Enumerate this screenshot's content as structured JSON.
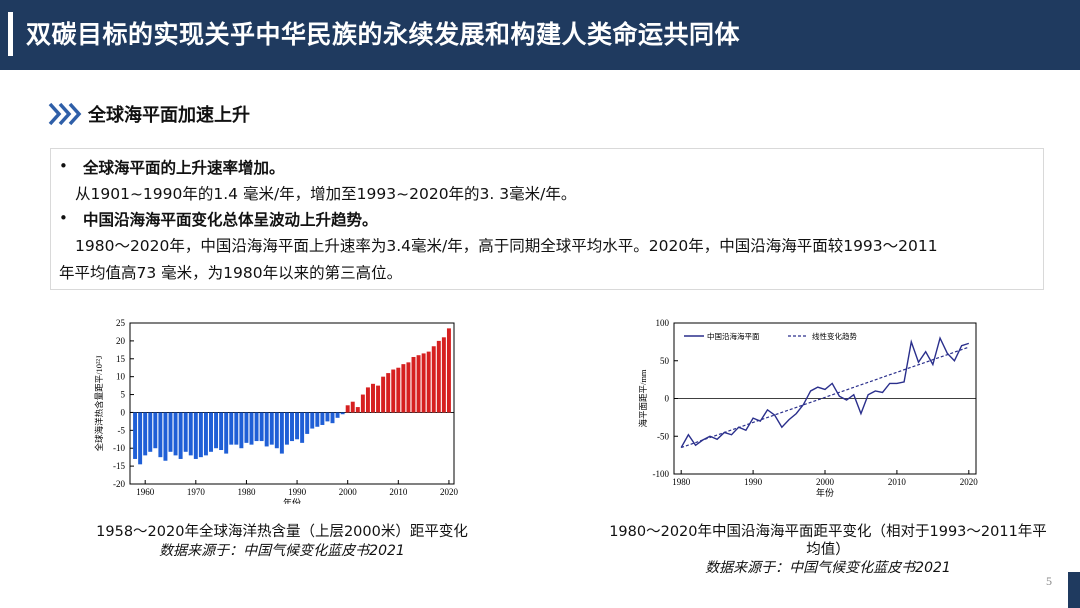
{
  "header": {
    "title": "双碳目标的实现关乎中华民族的永续发展和构建人类命运共同体"
  },
  "section": {
    "title": "全球海平面加速上升"
  },
  "points": [
    {
      "bullet": "•",
      "heading": "全球海平面的上升速率增加。",
      "body_lines": [
        "从1901~1990年的1.4 毫米/年，增加至1993~2020年的3. 3毫米/年。"
      ]
    },
    {
      "bullet": "•",
      "heading": "中国沿海海平面变化总体呈波动上升趋势。",
      "body_lines": [
        "1980～2020年，中国沿海海平面上升速率为3.4毫米/年，高于同期全球平均水平。2020年，中国沿海海平面较1993～2011",
        "年平均值高73 毫米，为1980年以来的第三高位。"
      ]
    }
  ],
  "left_figure": {
    "caption": "1958～2020年全球海洋热含量（上层2000米）距平变化",
    "source": "数据来源于：中国气候变化蓝皮书2021"
  },
  "right_figure": {
    "caption_lines": [
      "1980～2020年中国沿海海平面距平变化（相对于1993～2011年平",
      "均值）"
    ],
    "source": "数据来源于：中国气候变化蓝皮书2021"
  },
  "page_number": "5",
  "colors": {
    "header_bg": "#1f3a5f",
    "bar_negative": "#1f5fd6",
    "bar_positive": "#d62020",
    "line": "#2a2f8c"
  },
  "chart_data": [
    {
      "type": "bar",
      "xlabel": "年份",
      "ylabel": "全球海洋热含量距平/10²²J",
      "xlim": [
        1957,
        2021
      ],
      "ylim": [
        -20,
        25
      ],
      "xticks": [
        1960,
        1970,
        1980,
        1990,
        2000,
        2010,
        2020
      ],
      "yticks": [
        -20,
        -15,
        -10,
        -5,
        0,
        5,
        10,
        15,
        20,
        25
      ],
      "x": [
        1958,
        1959,
        1960,
        1961,
        1962,
        1963,
        1964,
        1965,
        1966,
        1967,
        1968,
        1969,
        1970,
        1971,
        1972,
        1973,
        1974,
        1975,
        1976,
        1977,
        1978,
        1979,
        1980,
        1981,
        1982,
        1983,
        1984,
        1985,
        1986,
        1987,
        1988,
        1989,
        1990,
        1991,
        1992,
        1993,
        1994,
        1995,
        1996,
        1997,
        1998,
        1999,
        2000,
        2001,
        2002,
        2003,
        2004,
        2005,
        2006,
        2007,
        2008,
        2009,
        2010,
        2011,
        2012,
        2013,
        2014,
        2015,
        2016,
        2017,
        2018,
        2019,
        2020
      ],
      "values": [
        -13,
        -14.5,
        -12,
        -11,
        -10,
        -12.5,
        -13.5,
        -11,
        -12,
        -13,
        -11,
        -12,
        -13,
        -12.5,
        -12,
        -11,
        -10,
        -10.5,
        -11.5,
        -9,
        -9,
        -10,
        -8.5,
        -9,
        -8,
        -8,
        -9.5,
        -9,
        -10,
        -11.5,
        -9,
        -8,
        -7.5,
        -8.5,
        -6,
        -4.5,
        -4,
        -3.5,
        -2.5,
        -3,
        -1.5,
        -0.5,
        2,
        3,
        1.5,
        5,
        7,
        8,
        7.5,
        10,
        11,
        12,
        12.5,
        13.5,
        14,
        15.5,
        16,
        16.5,
        17,
        18.5,
        20,
        21,
        23.5
      ]
    },
    {
      "type": "line",
      "xlabel": "年份",
      "ylabel": "海平面距平/mm",
      "xlim": [
        1979,
        2021
      ],
      "ylim": [
        -100,
        100
      ],
      "xticks": [
        1980,
        1990,
        2000,
        2010,
        2020
      ],
      "yticks": [
        -100,
        -50,
        0,
        50,
        100
      ],
      "series": [
        {
          "name": "中国沿海海平面",
          "style": "solid",
          "x": [
            1980,
            1981,
            1982,
            1983,
            1984,
            1985,
            1986,
            1987,
            1988,
            1989,
            1990,
            1991,
            1992,
            1993,
            1994,
            1995,
            1996,
            1997,
            1998,
            1999,
            2000,
            2001,
            2002,
            2003,
            2004,
            2005,
            2006,
            2007,
            2008,
            2009,
            2010,
            2011,
            2012,
            2013,
            2014,
            2015,
            2016,
            2017,
            2018,
            2019,
            2020
          ],
          "y": [
            -65,
            -48,
            -62,
            -55,
            -50,
            -54,
            -45,
            -48,
            -38,
            -42,
            -26,
            -30,
            -15,
            -22,
            -38,
            -28,
            -20,
            -8,
            10,
            15,
            12,
            20,
            3,
            -2,
            5,
            -20,
            5,
            10,
            8,
            20,
            20,
            22,
            75,
            48,
            62,
            45,
            80,
            60,
            50,
            70,
            73
          ]
        },
        {
          "name": "线性变化趋势",
          "style": "dashed",
          "x": [
            1980,
            2020
          ],
          "y": [
            -65,
            68
          ]
        }
      ]
    }
  ]
}
